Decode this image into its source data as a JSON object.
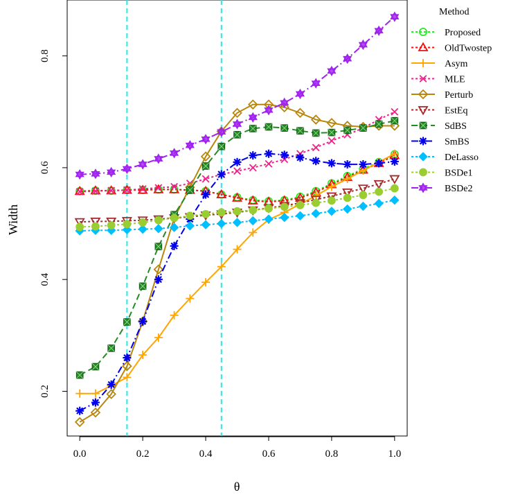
{
  "chart_data": {
    "type": "line",
    "xlabel": "θ",
    "ylabel": "Width",
    "xlim": [
      -0.04,
      1.04
    ],
    "ylim": [
      0.12,
      0.9
    ],
    "x_ticks": [
      "0.0",
      "0.2",
      "0.4",
      "0.6",
      "0.8",
      "1.0"
    ],
    "y_ticks": [
      "0.2",
      "0.4",
      "0.6",
      "0.8"
    ],
    "grid": false,
    "legend": {
      "title": "Method",
      "placement": "right-outside-top"
    },
    "vlines": [
      0.15,
      0.45
    ],
    "vline_color": "#26e6e6",
    "x": [
      0,
      0.05,
      0.1,
      0.15,
      0.2,
      0.25,
      0.3,
      0.35,
      0.4,
      0.45,
      0.5,
      0.55,
      0.6,
      0.65,
      0.7,
      0.75,
      0.8,
      0.85,
      0.9,
      0.95,
      1.0
    ],
    "series": [
      {
        "name": "Proposed",
        "color": "#22ee22",
        "marker": "circle",
        "dash": "3,3",
        "values": [
          0.558,
          0.559,
          0.559,
          0.56,
          0.56,
          0.561,
          0.561,
          0.56,
          0.558,
          0.552,
          0.547,
          0.542,
          0.54,
          0.542,
          0.548,
          0.558,
          0.572,
          0.585,
          0.598,
          0.61,
          0.624
        ]
      },
      {
        "name": "OldTwostep",
        "color": "#ee1111",
        "marker": "triangle-up",
        "dash": "3,3",
        "values": [
          0.558,
          0.559,
          0.559,
          0.56,
          0.56,
          0.561,
          0.561,
          0.56,
          0.558,
          0.552,
          0.546,
          0.541,
          0.539,
          0.541,
          0.546,
          0.556,
          0.57,
          0.583,
          0.596,
          0.608,
          0.622
        ]
      },
      {
        "name": "Asym",
        "color": "#ffa500",
        "marker": "plus",
        "dash": "",
        "values": [
          0.196,
          0.196,
          0.21,
          0.225,
          0.265,
          0.296,
          0.336,
          0.366,
          0.395,
          0.423,
          0.454,
          0.484,
          0.507,
          0.52,
          0.535,
          0.55,
          0.566,
          0.58,
          0.595,
          0.61,
          0.625
        ]
      },
      {
        "name": "MLE",
        "color": "#ee2288",
        "marker": "x",
        "dash": "3,3",
        "values": [
          0.557,
          0.558,
          0.559,
          0.56,
          0.562,
          0.564,
          0.566,
          0.572,
          0.58,
          0.588,
          0.594,
          0.6,
          0.607,
          0.615,
          0.625,
          0.636,
          0.648,
          0.659,
          0.671,
          0.686,
          0.7
        ]
      },
      {
        "name": "Perturb",
        "color": "#b8860b",
        "marker": "diamond",
        "dash": "",
        "values": [
          0.145,
          0.162,
          0.195,
          0.245,
          0.325,
          0.418,
          0.51,
          0.565,
          0.62,
          0.665,
          0.698,
          0.713,
          0.713,
          0.708,
          0.698,
          0.686,
          0.68,
          0.675,
          0.673,
          0.675,
          0.675
        ]
      },
      {
        "name": "EstEq",
        "color": "#a52a2a",
        "marker": "triangle-down",
        "dash": "3,3",
        "values": [
          0.503,
          0.504,
          0.504,
          0.505,
          0.506,
          0.508,
          0.51,
          0.512,
          0.515,
          0.517,
          0.52,
          0.524,
          0.528,
          0.532,
          0.537,
          0.543,
          0.549,
          0.556,
          0.563,
          0.571,
          0.58
        ]
      },
      {
        "name": "SdBS",
        "color": "#228b22",
        "marker": "square",
        "dash": "9,5",
        "values": [
          0.229,
          0.244,
          0.277,
          0.324,
          0.388,
          0.459,
          0.516,
          0.56,
          0.603,
          0.638,
          0.659,
          0.67,
          0.673,
          0.671,
          0.666,
          0.662,
          0.663,
          0.667,
          0.671,
          0.678,
          0.684
        ]
      },
      {
        "name": "SmBS",
        "color": "#0000ee",
        "marker": "star",
        "dash": "10,4,2,4",
        "values": [
          0.165,
          0.18,
          0.212,
          0.26,
          0.325,
          0.4,
          0.46,
          0.508,
          0.552,
          0.588,
          0.61,
          0.622,
          0.625,
          0.623,
          0.618,
          0.612,
          0.608,
          0.606,
          0.606,
          0.608,
          0.611
        ]
      },
      {
        "name": "DeLasso",
        "color": "#00bfff",
        "marker": "diamond-filled",
        "dash": "3,3",
        "values": [
          0.487,
          0.488,
          0.488,
          0.489,
          0.49,
          0.491,
          0.493,
          0.496,
          0.498,
          0.5,
          0.502,
          0.505,
          0.508,
          0.511,
          0.514,
          0.518,
          0.522,
          0.526,
          0.531,
          0.536,
          0.542
        ]
      },
      {
        "name": "BSDe1",
        "color": "#9acd32",
        "marker": "circle-filled",
        "dash": "3,3",
        "values": [
          0.494,
          0.495,
          0.497,
          0.499,
          0.502,
          0.506,
          0.51,
          0.514,
          0.517,
          0.52,
          0.522,
          0.524,
          0.527,
          0.53,
          0.533,
          0.537,
          0.541,
          0.546,
          0.551,
          0.557,
          0.563
        ]
      },
      {
        "name": "BSDe2",
        "color": "#a020f0",
        "marker": "hexagram",
        "dash": "10,4,2,4",
        "values": [
          0.588,
          0.589,
          0.592,
          0.598,
          0.606,
          0.616,
          0.626,
          0.64,
          0.651,
          0.664,
          0.678,
          0.69,
          0.703,
          0.716,
          0.732,
          0.751,
          0.773,
          0.795,
          0.82,
          0.845,
          0.87
        ]
      }
    ]
  }
}
